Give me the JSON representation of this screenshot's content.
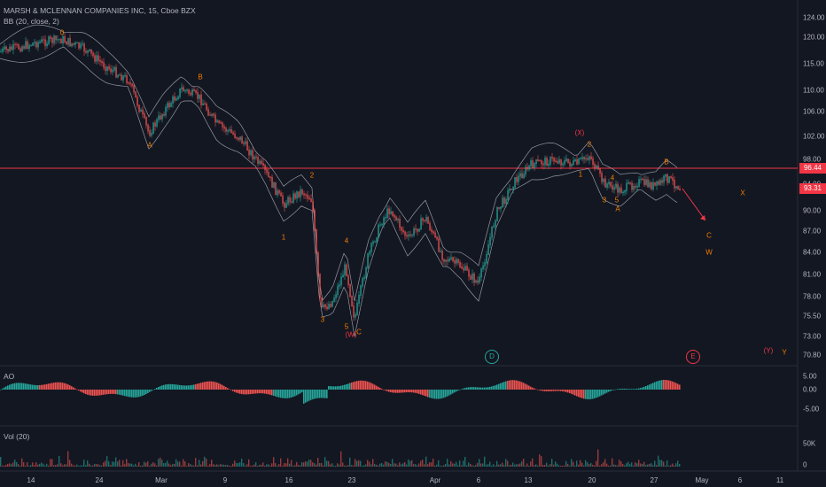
{
  "header": {
    "symbol_line": "MARSH & MCLENNAN COMPANIES INC, 15, Cboe BZX",
    "indicator_line": "BB (20, close, 2)"
  },
  "panes": {
    "ao_title": "AO",
    "vol_title": "Vol (20)"
  },
  "price_axis": {
    "ticks": [
      "124.00",
      "120.00",
      "115.00",
      "110.00",
      "106.00",
      "102.00",
      "98.00",
      "94.00",
      "90.00",
      "87.00",
      "84.00",
      "81.00",
      "78.00",
      "75.50",
      "73.00",
      "70.80"
    ],
    "line_price_tag": "96.44",
    "last_price_tag": "93.31",
    "line_color": "#f23645",
    "last_color": "#f23645"
  },
  "ao_axis": {
    "ticks": [
      "5.00",
      "0.00",
      "-5.00"
    ]
  },
  "vol_axis": {
    "ticks": [
      "50K",
      "0"
    ]
  },
  "time_axis": {
    "labels": [
      "14",
      "24",
      "Mar",
      "9",
      "16",
      "23",
      "Apr",
      "6",
      "13",
      "20",
      "27",
      "May",
      "6",
      "11"
    ]
  },
  "wave_labels": [
    {
      "text": "0",
      "color": "#f57c00"
    },
    {
      "text": "A",
      "color": "#f57c00"
    },
    {
      "text": "B",
      "color": "#f57c00"
    },
    {
      "text": "1",
      "color": "#f57c00"
    },
    {
      "text": "2",
      "color": "#f57c00"
    },
    {
      "text": "3",
      "color": "#f57c00"
    },
    {
      "text": "4",
      "color": "#f57c00"
    },
    {
      "text": "5",
      "color": "#f57c00"
    },
    {
      "text": "(W)",
      "color": "#f23645"
    },
    {
      "text": "C",
      "color": "#f57c00"
    },
    {
      "text": "(X)",
      "color": "#f23645"
    },
    {
      "text": "2",
      "color": "#f57c00"
    },
    {
      "text": "1",
      "color": "#f57c00"
    },
    {
      "text": "4",
      "color": "#f57c00"
    },
    {
      "text": "3",
      "color": "#f57c00"
    },
    {
      "text": "5",
      "color": "#f57c00"
    },
    {
      "text": "A",
      "color": "#f57c00"
    },
    {
      "text": "B",
      "color": "#f57c00"
    },
    {
      "text": "X",
      "color": "#f57c00"
    },
    {
      "text": "C",
      "color": "#f57c00"
    },
    {
      "text": "W",
      "color": "#f57c00"
    },
    {
      "text": "(Y)",
      "color": "#f23645"
    },
    {
      "text": "Y",
      "color": "#f57c00"
    }
  ],
  "circled_labels": [
    {
      "text": "D",
      "color": "#26a69a"
    },
    {
      "text": "E",
      "color": "#f23645"
    }
  ],
  "colors": {
    "up": "#26a69a",
    "down": "#ef5350",
    "band": "#9598a1",
    "ao_up": "#26a69a",
    "ao_down": "#ef5350"
  }
}
